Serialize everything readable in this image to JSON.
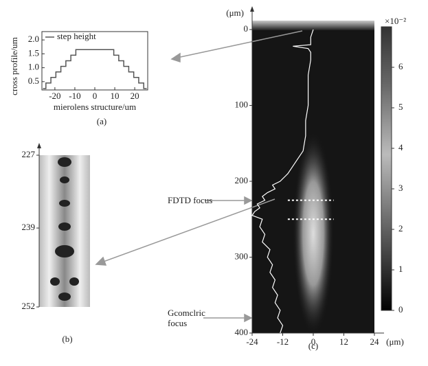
{
  "chart_data": [
    {
      "type": "line",
      "panel": "(a)",
      "xlabel": "mierolens structure/um",
      "ylabel": "cross profile/um",
      "xlim": [
        -26.5,
        26.5
      ],
      "ylim": [
        0.2,
        2.3
      ],
      "xticks": [
        -20,
        -10,
        0,
        10,
        20
      ],
      "yticks": [
        0.5,
        {
          "value": 1.0,
          "label": "1.0"
        },
        1.5,
        {
          "value": 2.0,
          "label": "2.0"
        }
      ],
      "series": [
        {
          "name": "step height",
          "color": "#555555",
          "x": [
            -26,
            -24.5,
            -24.5,
            -22,
            -22,
            -19.5,
            -19.5,
            -17,
            -17,
            -14.5,
            -14.5,
            -12,
            -12,
            -9.5,
            -9.5,
            9.5,
            9.5,
            12,
            12,
            14.5,
            14.5,
            17,
            17,
            19.5,
            19.5,
            22,
            22,
            24.5,
            24.5,
            26
          ],
          "values": [
            0.25,
            0.25,
            0.45,
            0.45,
            0.65,
            0.65,
            0.85,
            0.85,
            1.05,
            1.05,
            1.25,
            1.25,
            1.45,
            1.45,
            1.65,
            1.65,
            1.45,
            1.45,
            1.25,
            1.25,
            1.05,
            1.05,
            0.85,
            0.85,
            0.65,
            0.65,
            0.45,
            0.45,
            0.25,
            0.25
          ]
        }
      ]
    },
    {
      "type": "heatmap",
      "panel": "(b)",
      "ylim": [
        227,
        252
      ],
      "yticks": [
        227,
        239,
        252
      ]
    },
    {
      "type": "heatmap",
      "panel": "(c)",
      "ylabel": "(μm)",
      "xlabel": "(μm)",
      "xlim": [
        -24,
        24
      ],
      "ylim": [
        0,
        400
      ],
      "xticks": [
        -24,
        -12,
        0,
        12,
        24
      ],
      "yticks": [
        0,
        100,
        200,
        300,
        400
      ],
      "colorbar": {
        "lim": [
          0,
          7
        ],
        "ticks": [
          0,
          1,
          2,
          3,
          4,
          5,
          6
        ],
        "label": "×10⁻²"
      },
      "annotations": [
        "FDTD focus",
        "Gcomclric focus"
      ],
      "focus_depths": [
        225,
        250
      ],
      "profile": {
        "color": "#ffffff",
        "depth": [
          0,
          10,
          20,
          22,
          25,
          30,
          40,
          60,
          80,
          100,
          120,
          140,
          160,
          170,
          180,
          190,
          200,
          205,
          210,
          215,
          220,
          225,
          230,
          235,
          240,
          245,
          250,
          260,
          270,
          280,
          290,
          300,
          310,
          320,
          330,
          340,
          350,
          360,
          370,
          380,
          390,
          400
        ],
        "x": [
          0,
          -1,
          -1,
          -8,
          -2,
          -1,
          -1,
          -2,
          -2,
          -2,
          -3,
          -3,
          -4,
          -6,
          -8,
          -10,
          -13,
          -16,
          -15,
          -18,
          -20,
          -19,
          -22,
          -21,
          -23,
          -24,
          -20,
          -21,
          -19,
          -20,
          -17,
          -18,
          -16,
          -17,
          -15,
          -16,
          -14,
          -15,
          -13,
          -14,
          -12,
          -13
        ]
      }
    }
  ]
}
